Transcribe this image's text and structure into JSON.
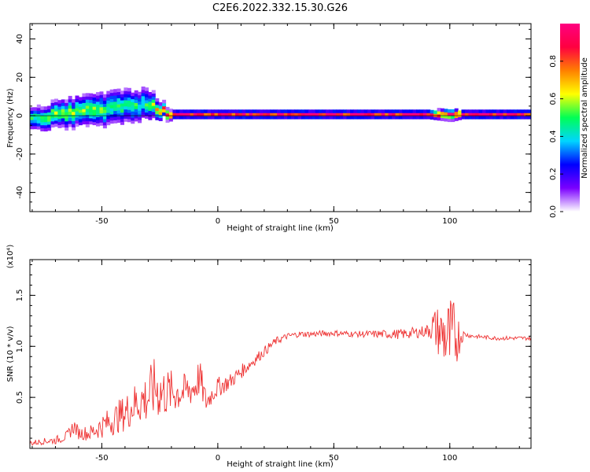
{
  "title": "C2E6.2022.332.15.30.G26",
  "colorbar": {
    "label": "Normalized spectral amplitude",
    "ticks": [
      "0.0",
      "0.2",
      "0.4",
      "0.6",
      "0.8"
    ],
    "tick_values": [
      0.0,
      0.2,
      0.4,
      0.6,
      0.8
    ],
    "range": [
      0,
      1
    ],
    "colormap": [
      "#ffffff",
      "#7b00ff",
      "#0000ff",
      "#00d5ff",
      "#00ff55",
      "#ffff00",
      "#ff8000",
      "#ff0040",
      "#ff0080"
    ]
  },
  "chart_data": [
    {
      "type": "heatmap",
      "name": "spectrogram",
      "title": "C2E6.2022.332.15.30.G26",
      "xlabel": "Height of straight line (km)",
      "ylabel": "Frequency (Hz)",
      "xlim": [
        -81,
        135
      ],
      "ylim": [
        -50,
        48
      ],
      "x_ticks": [
        -50,
        0,
        50,
        100
      ],
      "y_ticks": [
        -40,
        -20,
        0,
        20,
        40
      ],
      "x_tick_labels": [
        "-50",
        "0",
        "50",
        "100"
      ],
      "y_tick_labels": [
        "-40",
        "-20",
        "0",
        "20",
        "40"
      ],
      "band_centerline_hz": 0,
      "band": {
        "x": [
          -80,
          -70,
          -60,
          -50,
          -40,
          -30,
          -25,
          -20,
          -10,
          0,
          10,
          50,
          90,
          100,
          105,
          134
        ],
        "center_hz": [
          -2,
          0,
          2,
          3,
          4,
          5,
          2,
          0,
          0,
          0,
          0,
          0,
          0,
          0,
          0,
          0
        ],
        "halfwidth_hz": [
          6,
          7,
          8,
          9,
          9,
          8,
          4,
          2,
          2,
          2,
          2,
          2,
          2,
          3,
          2,
          2
        ],
        "peak_amplitude": [
          0.5,
          0.6,
          0.6,
          0.55,
          0.5,
          0.5,
          0.85,
          1.0,
          1.0,
          0.95,
          1.0,
          1.0,
          1.0,
          0.9,
          1.0,
          1.0
        ]
      }
    },
    {
      "type": "line",
      "name": "snr",
      "title": "",
      "xlabel": "Height of straight line (km)",
      "ylabel": "SNR (10 * v/v)",
      "ylabel_multiplier": "(x10⁴)",
      "xlim": [
        -81,
        135
      ],
      "ylim": [
        0,
        1.85
      ],
      "x_ticks": [
        -50,
        0,
        50,
        100
      ],
      "y_ticks": [
        0.5,
        1.0,
        1.5
      ],
      "x_tick_labels": [
        "-50",
        "0",
        "50",
        "100"
      ],
      "y_tick_labels": [
        "0.5",
        "1.0",
        "1.5"
      ],
      "color": "#ee3333",
      "series": [
        {
          "x": [
            -81,
            -75,
            -70,
            -65,
            -62,
            -60,
            -55,
            -50,
            -45,
            -40,
            -35,
            -30,
            -27,
            -25,
            -20,
            -15,
            -10,
            -8,
            -5,
            -2,
            0,
            5,
            10,
            15,
            20,
            25,
            30,
            35,
            40,
            50,
            60,
            70,
            80,
            90,
            92,
            95,
            98,
            100,
            102,
            104,
            106,
            110,
            120,
            130,
            134
          ],
          "y": [
            0.05,
            0.07,
            0.08,
            0.12,
            0.22,
            0.15,
            0.15,
            0.22,
            0.28,
            0.35,
            0.45,
            0.5,
            0.6,
            0.55,
            0.55,
            0.55,
            0.6,
            0.7,
            0.45,
            0.55,
            0.6,
            0.65,
            0.75,
            0.85,
            0.95,
            1.05,
            1.1,
            1.12,
            1.12,
            1.13,
            1.12,
            1.12,
            1.12,
            1.15,
            1.2,
            1.15,
            1.1,
            1.05,
            1.1,
            1.1,
            1.12,
            1.1,
            1.08,
            1.08,
            1.08
          ],
          "noise": [
            0.03,
            0.03,
            0.04,
            0.05,
            0.08,
            0.06,
            0.08,
            0.12,
            0.15,
            0.18,
            0.22,
            0.28,
            0.3,
            0.28,
            0.22,
            0.18,
            0.18,
            0.2,
            0.12,
            0.1,
            0.1,
            0.08,
            0.07,
            0.06,
            0.05,
            0.04,
            0.03,
            0.03,
            0.03,
            0.03,
            0.03,
            0.04,
            0.05,
            0.06,
            0.15,
            0.25,
            0.35,
            0.45,
            0.35,
            0.2,
            0.03,
            0.02,
            0.02,
            0.02,
            0.02
          ]
        }
      ]
    }
  ]
}
